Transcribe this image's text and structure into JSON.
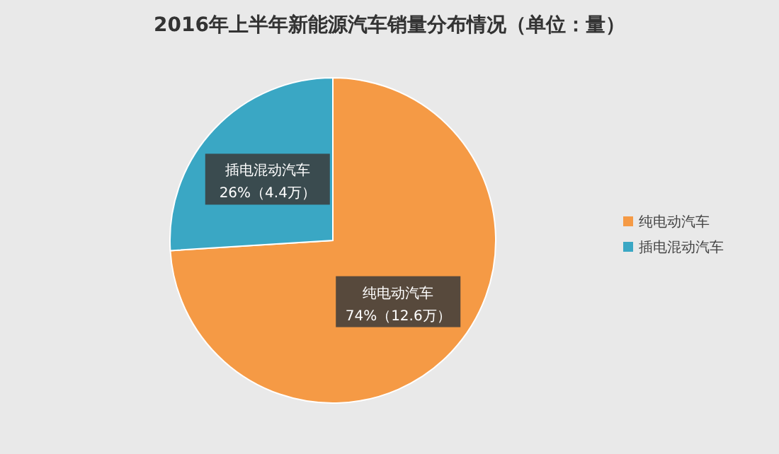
{
  "chart_data": {
    "type": "pie",
    "title": "2016年上半年新能源汽车销量分布情况（单位：量）",
    "categories": [
      "纯电动汽车",
      "插电混动汽车"
    ],
    "values": [
      74,
      26
    ],
    "colors": [
      "#f59a45",
      "#3aa7c4"
    ],
    "value_labels": [
      "74%（12.6万）",
      "26%（4.4万）"
    ],
    "legend": "right"
  }
}
